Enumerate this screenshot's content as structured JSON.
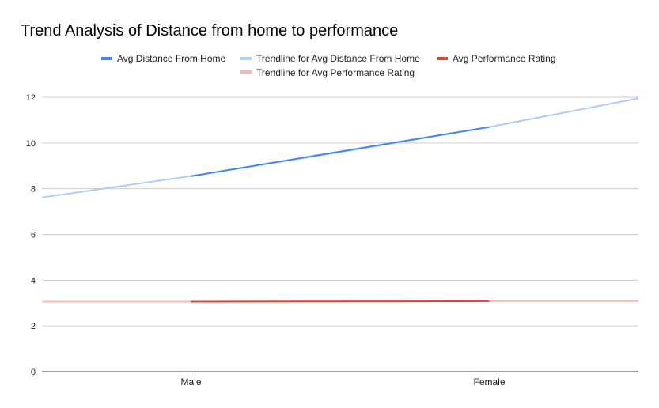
{
  "chart_data": {
    "type": "line",
    "title": "Trend Analysis of Distance from home to performance",
    "categories": [
      "Male",
      "Female"
    ],
    "ylim": [
      0,
      12
    ],
    "yticks": [
      0,
      2,
      4,
      6,
      8,
      10,
      12
    ],
    "grid": true,
    "legend_position": "top",
    "series": [
      {
        "name": "Avg Distance From Home",
        "values": [
          8.55,
          10.7
        ],
        "color": "#4285f4"
      },
      {
        "name": "Avg Performance Rating",
        "values": [
          3.06,
          3.08
        ],
        "color": "#db4437"
      }
    ],
    "trendlines": [
      {
        "name": "Trendline for Avg Distance From Home",
        "values": [
          7.62,
          8.55,
          9.6,
          10.7,
          11.95
        ],
        "color": "#aecbfa"
      },
      {
        "name": "Trendline for Avg Performance Rating",
        "values": [
          3.06,
          3.06,
          3.07,
          3.08,
          3.08
        ],
        "color": "#f4b9b2"
      }
    ]
  }
}
